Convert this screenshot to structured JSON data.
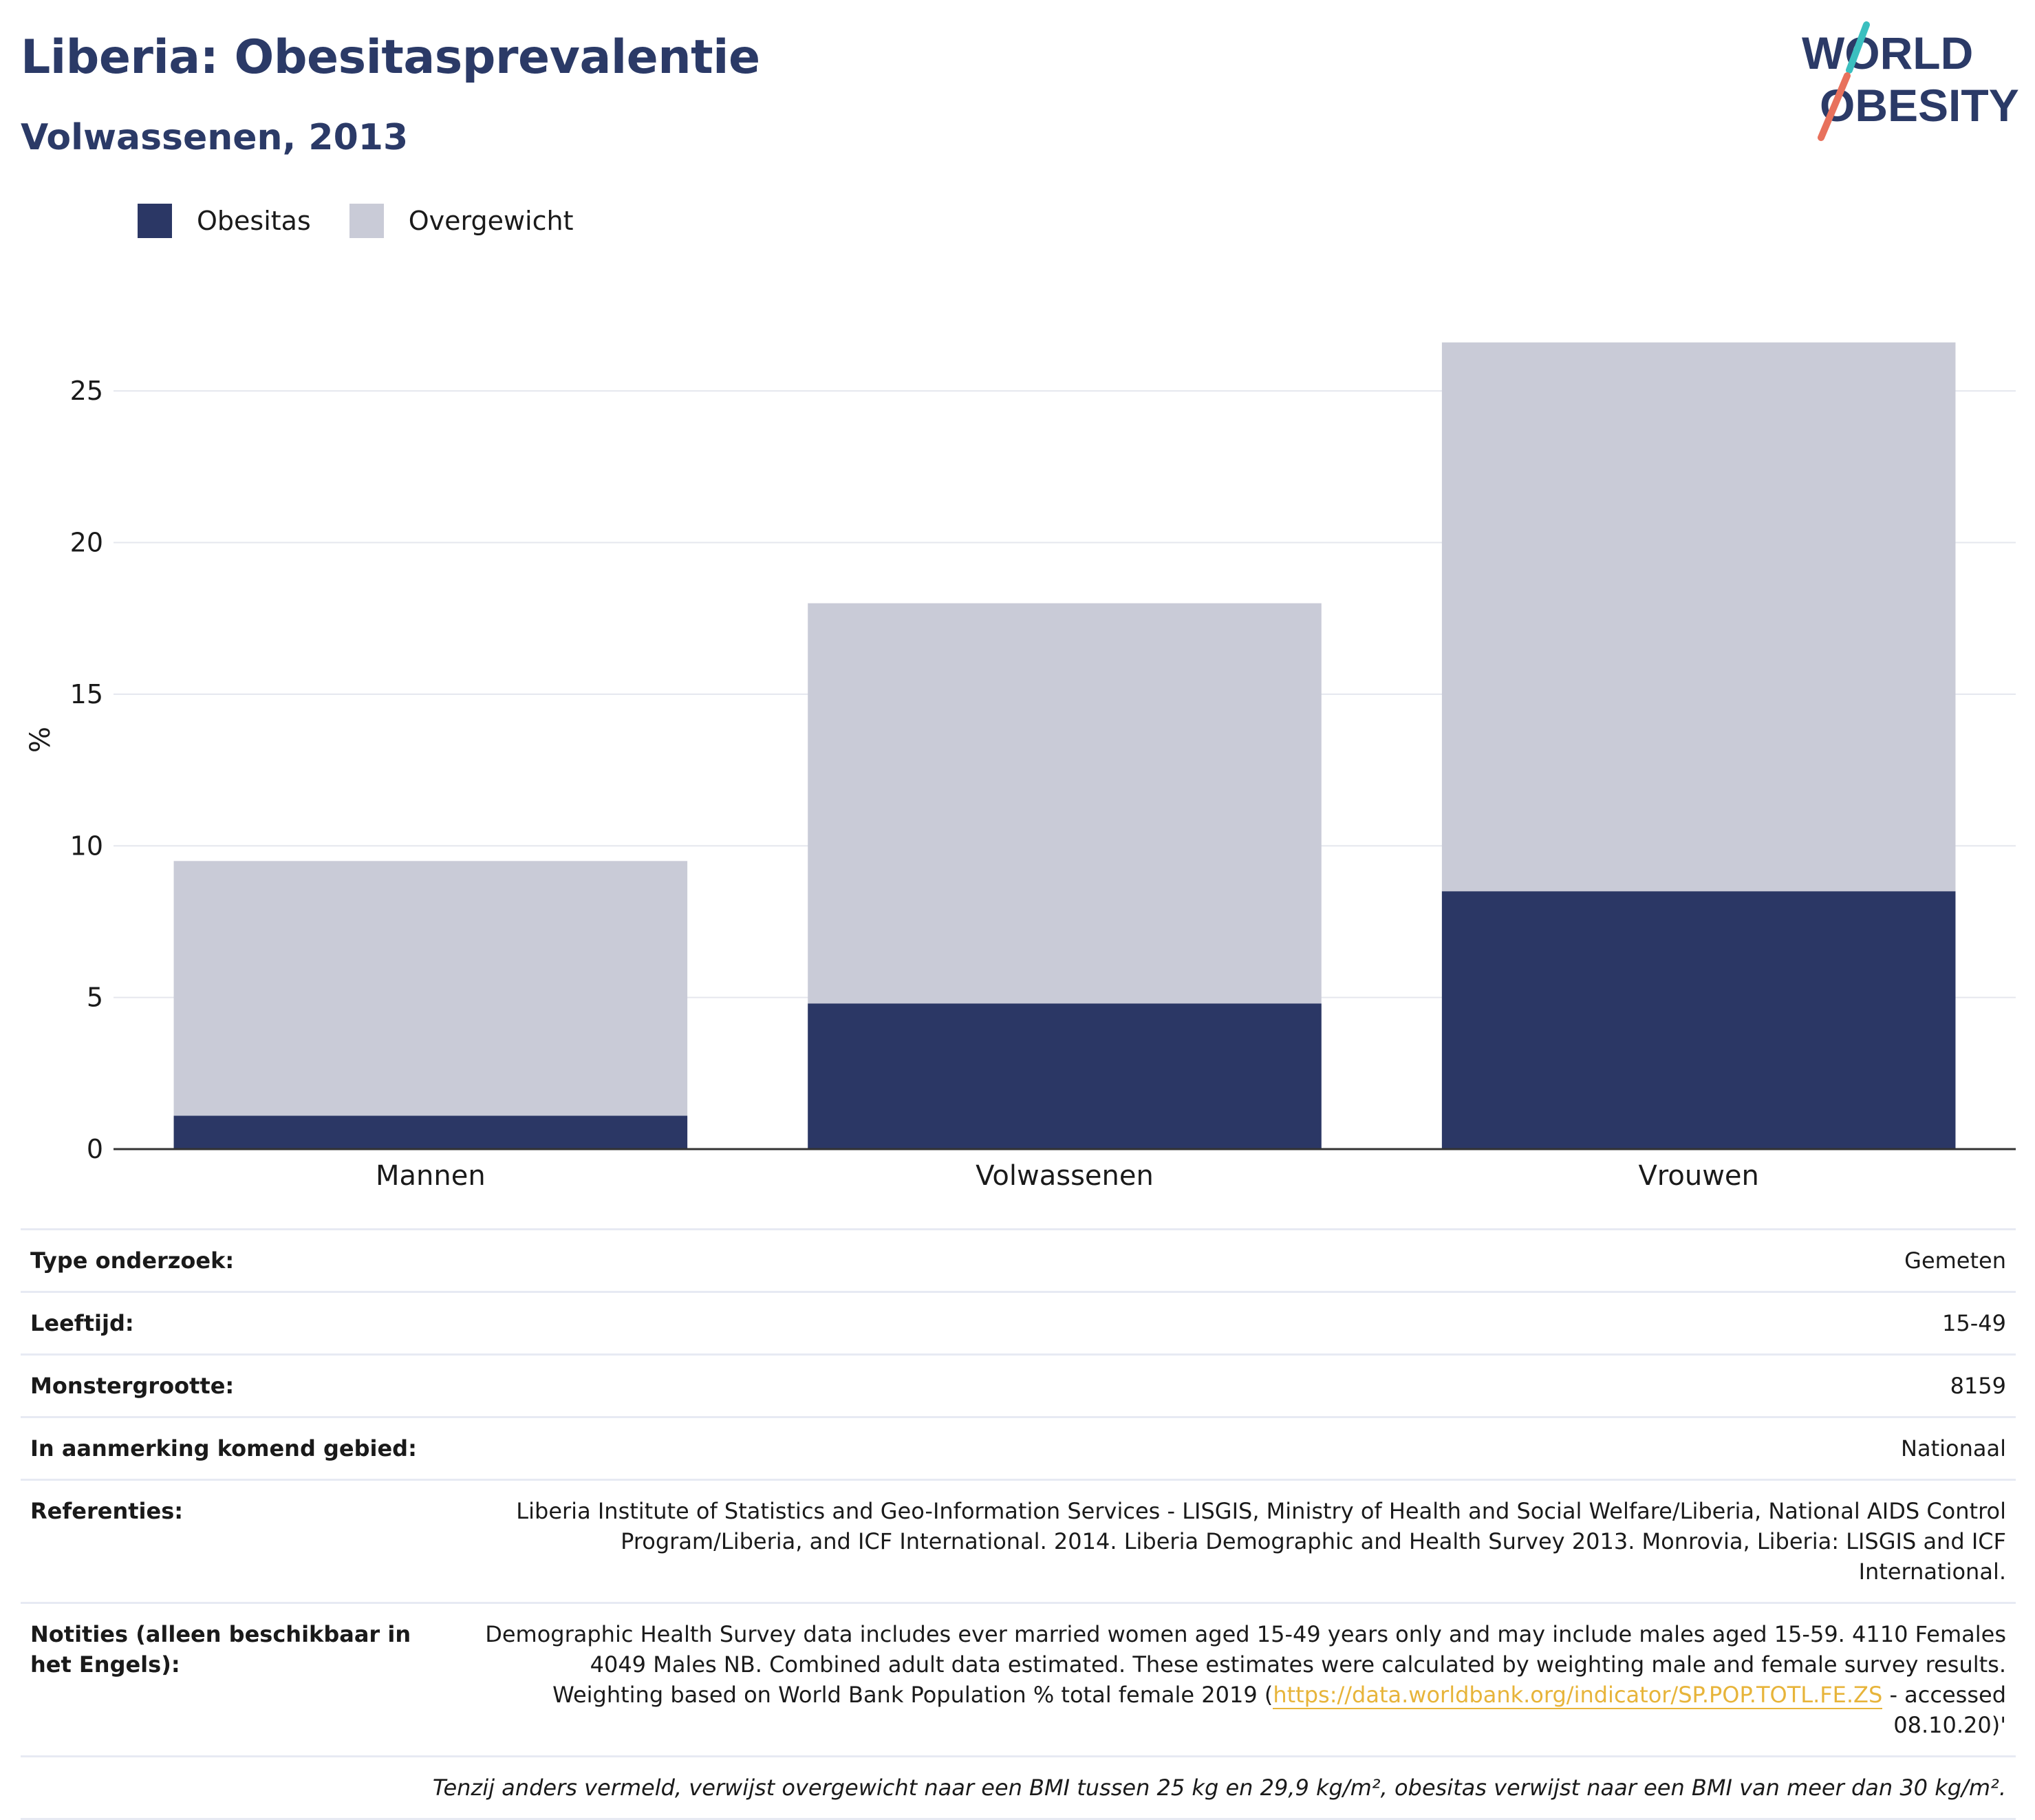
{
  "header": {
    "title": "Liberia: Obesitasprevalentie",
    "subtitle": "Volwassenen, 2013",
    "logo_line1": "WORLD",
    "logo_line2": "OBESITY"
  },
  "colors": {
    "obesity": "#2b3765",
    "overweight": "#c9cbd7",
    "title": "#2b3a67",
    "logo_slash_teal": "#3bbfbf",
    "logo_slash_coral": "#e8715c",
    "link": "#e7b43a"
  },
  "chart_data": {
    "type": "bar",
    "stacked": false,
    "overlay": true,
    "categories": [
      "Mannen",
      "Volwassenen",
      "Vrouwen"
    ],
    "series": [
      {
        "name": "Overgewicht",
        "values": [
          9.5,
          18.0,
          26.6
        ]
      },
      {
        "name": "Obesitas",
        "values": [
          1.1,
          4.8,
          8.5
        ]
      }
    ],
    "title": "",
    "xlabel": "",
    "ylabel": "%",
    "ylim": [
      0,
      27
    ],
    "yticks": [
      0,
      5,
      10,
      15,
      20,
      25
    ],
    "grid": true,
    "legend": "top-left"
  },
  "legend": {
    "obesity_label": "Obesitas",
    "overweight_label": "Overgewicht"
  },
  "info": {
    "rows": [
      {
        "key": "Type onderzoek:",
        "value": "Gemeten"
      },
      {
        "key": "Leeftijd:",
        "value": "15-49"
      },
      {
        "key": "Monstergrootte:",
        "value": "8159"
      },
      {
        "key": "In aanmerking komend gebied:",
        "value": "Nationaal"
      },
      {
        "key": "Referenties:",
        "value": "Liberia Institute of Statistics and Geo-Information Services - LISGIS, Ministry of Health and Social Welfare/Liberia, National AIDS Control Program/Liberia, and ICF International. 2014. Liberia Demographic and Health Survey 2013. Monrovia, Liberia: LISGIS and ICF International."
      }
    ],
    "notes_key": "Notities (alleen beschikbaar in het Engels):",
    "notes_before": "Demographic Health Survey data includes ever married women aged 15-49 years only and may include males aged 15-59. 4110 Females 4049 Males NB. Combined adult data estimated. These estimates were calculated by weighting male and female survey results. Weighting based on World Bank Population % total female 2019 (",
    "notes_link": "https://data.worldbank.org/indicator/SP.POP.TOTL.FE.ZS",
    "notes_after": " - accessed 08.10.20)'",
    "footnote": "Tenzij anders vermeld, verwijst overgewicht naar een BMI tussen 25 kg en 29,9 kg/m², obesitas verwijst naar een BMI van meer dan 30 kg/m²."
  }
}
